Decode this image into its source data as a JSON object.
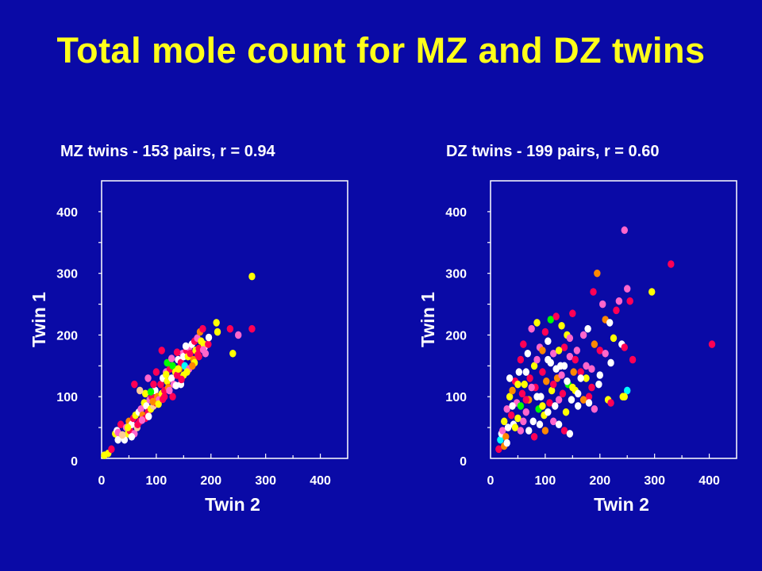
{
  "title": "Total mole count for MZ and DZ twins",
  "colors": {
    "background": "#0a0aa6",
    "title": "#ffff1a",
    "text": "#ffffff",
    "axes": "#ffffff"
  },
  "chart_data": [
    {
      "type": "scatter",
      "title": "MZ twins - 153 pairs, r = 0.94",
      "xlabel": "Twin 2",
      "ylabel": "Twin 1",
      "xlim": [
        0,
        450
      ],
      "ylim": [
        0,
        450
      ],
      "xticks": [
        "0",
        "100",
        "200",
        "300",
        "400"
      ],
      "yticks": [
        "0",
        "100",
        "200",
        "300",
        "400"
      ],
      "grid": false,
      "points": [
        [
          5,
          5,
          "#ffff00"
        ],
        [
          12,
          8,
          "#ffff00"
        ],
        [
          18,
          15,
          "#ff0055"
        ],
        [
          25,
          40,
          "#ffff00"
        ],
        [
          28,
          45,
          "#ffffff"
        ],
        [
          30,
          42,
          "#ff66cc"
        ],
        [
          35,
          55,
          "#ff0055"
        ],
        [
          40,
          35,
          "#ffff00"
        ],
        [
          42,
          30,
          "#ffffff"
        ],
        [
          45,
          50,
          "#ff66cc"
        ],
        [
          48,
          40,
          "#ffff00"
        ],
        [
          50,
          60,
          "#ff8800"
        ],
        [
          52,
          45,
          "#ff0055"
        ],
        [
          55,
          55,
          "#ffffff"
        ],
        [
          58,
          65,
          "#ff0055"
        ],
        [
          60,
          40,
          "#ff66cc"
        ],
        [
          62,
          70,
          "#ffff00"
        ],
        [
          65,
          50,
          "#ffcc99"
        ],
        [
          68,
          75,
          "#ffffff"
        ],
        [
          70,
          60,
          "#ff0055"
        ],
        [
          72,
          80,
          "#ff66cc"
        ],
        [
          75,
          70,
          "#ff8800"
        ],
        [
          78,
          90,
          "#ffff00"
        ],
        [
          80,
          65,
          "#ff0055"
        ],
        [
          82,
          85,
          "#ffffff"
        ],
        [
          85,
          75,
          "#ff0055"
        ],
        [
          88,
          95,
          "#ff66cc"
        ],
        [
          90,
          80,
          "#ffff00"
        ],
        [
          92,
          100,
          "#ff0055"
        ],
        [
          95,
          85,
          "#ffcc99"
        ],
        [
          98,
          110,
          "#ffffff"
        ],
        [
          100,
          90,
          "#ff0055"
        ],
        [
          102,
          100,
          "#ff8800"
        ],
        [
          105,
          95,
          "#ff66cc"
        ],
        [
          108,
          120,
          "#ff0055"
        ],
        [
          110,
          105,
          "#ffff00"
        ],
        [
          112,
          130,
          "#ffffff"
        ],
        [
          115,
          110,
          "#ff0055"
        ],
        [
          118,
          140,
          "#ff66cc"
        ],
        [
          120,
          125,
          "#ffff00"
        ],
        [
          122,
          115,
          "#ff8800"
        ],
        [
          125,
          145,
          "#ff0055"
        ],
        [
          128,
          130,
          "#ffffff"
        ],
        [
          130,
          150,
          "#00ff00"
        ],
        [
          132,
          120,
          "#ff66cc"
        ],
        [
          135,
          140,
          "#ffff00"
        ],
        [
          138,
          135,
          "#ff0055"
        ],
        [
          140,
          160,
          "#ffffff"
        ],
        [
          142,
          145,
          "#ff8800"
        ],
        [
          145,
          155,
          "#ff0055"
        ],
        [
          148,
          170,
          "#ff66cc"
        ],
        [
          150,
          165,
          "#ffffff"
        ],
        [
          152,
          150,
          "#00ffff"
        ],
        [
          155,
          175,
          "#ff0055"
        ],
        [
          158,
          165,
          "#ffff00"
        ],
        [
          160,
          180,
          "#ff66cc"
        ],
        [
          162,
          170,
          "#ff0055"
        ],
        [
          165,
          185,
          "#ffffff"
        ],
        [
          168,
          160,
          "#ff8800"
        ],
        [
          170,
          190,
          "#ff0055"
        ],
        [
          172,
          175,
          "#ffff00"
        ],
        [
          175,
          195,
          "#ff66cc"
        ],
        [
          178,
          165,
          "#ff0055"
        ],
        [
          180,
          205,
          "#ff8800"
        ],
        [
          182,
          190,
          "#ffff00"
        ],
        [
          185,
          210,
          "#ff0055"
        ],
        [
          188,
          180,
          "#ffffff"
        ],
        [
          190,
          170,
          "#ff66cc"
        ],
        [
          110,
          175,
          "#ff0055"
        ],
        [
          115,
          100,
          "#ff0055"
        ],
        [
          95,
          120,
          "#ff0055"
        ],
        [
          60,
          120,
          "#ff0055"
        ],
        [
          80,
          105,
          "#ffff00"
        ],
        [
          100,
          140,
          "#ff0055"
        ],
        [
          130,
          100,
          "#ff0055"
        ],
        [
          140,
          145,
          "#ffff00"
        ],
        [
          150,
          135,
          "#ffff00"
        ],
        [
          85,
          130,
          "#ff66cc"
        ],
        [
          70,
          110,
          "#ffcc99"
        ],
        [
          120,
          155,
          "#00ff00"
        ],
        [
          145,
          120,
          "#ffffff"
        ],
        [
          160,
          145,
          "#ff66cc"
        ],
        [
          170,
          155,
          "#ffff00"
        ],
        [
          178,
          178,
          "#ff0055"
        ],
        [
          187,
          185,
          "#ffff00"
        ],
        [
          195,
          185,
          "#ff0055"
        ],
        [
          210,
          220,
          "#ffff00"
        ],
        [
          212,
          205,
          "#ffff00"
        ],
        [
          235,
          210,
          "#ff0055"
        ],
        [
          250,
          200,
          "#ff66cc"
        ],
        [
          240,
          170,
          "#ffff00"
        ],
        [
          275,
          210,
          "#ff0055"
        ],
        [
          275,
          295,
          "#ffff00"
        ],
        [
          30,
          30,
          "#ffffff"
        ],
        [
          38,
          38,
          "#ffcc99"
        ],
        [
          48,
          50,
          "#ffff00"
        ],
        [
          55,
          35,
          "#ffffff"
        ],
        [
          66,
          55,
          "#ff0055"
        ],
        [
          74,
          62,
          "#ff66cc"
        ],
        [
          86,
          68,
          "#ffffff"
        ],
        [
          94,
          92,
          "#ff8800"
        ],
        [
          104,
          88,
          "#ffff00"
        ],
        [
          112,
          96,
          "#ff0055"
        ],
        [
          124,
          110,
          "#ff66cc"
        ],
        [
          136,
          118,
          "#ffffff"
        ],
        [
          146,
          128,
          "#ff0055"
        ],
        [
          156,
          140,
          "#ffff00"
        ],
        [
          166,
          150,
          "#ff8800"
        ],
        [
          176,
          168,
          "#ff0055"
        ],
        [
          186,
          176,
          "#ff66cc"
        ],
        [
          196,
          196,
          "#ffffff"
        ],
        [
          90,
          108,
          "#00ff00"
        ],
        [
          118,
          136,
          "#ffff00"
        ],
        [
          128,
          162,
          "#ff66cc"
        ],
        [
          138,
          172,
          "#ff0055"
        ],
        [
          154,
          182,
          "#ffffff"
        ]
      ]
    },
    {
      "type": "scatter",
      "title": "DZ twins - 199 pairs, r = 0.60",
      "xlabel": "Twin 2",
      "ylabel": "Twin 1",
      "xlim": [
        0,
        450
      ],
      "ylim": [
        0,
        450
      ],
      "xticks": [
        "0",
        "100",
        "200",
        "300",
        "400"
      ],
      "yticks": [
        "0",
        "100",
        "200",
        "300",
        "400"
      ],
      "grid": false,
      "points": [
        [
          15,
          15,
          "#ff0055"
        ],
        [
          18,
          30,
          "#00ffff"
        ],
        [
          20,
          40,
          "#ffffff"
        ],
        [
          22,
          45,
          "#ff66cc"
        ],
        [
          25,
          60,
          "#ffff00"
        ],
        [
          28,
          35,
          "#ff8800"
        ],
        [
          30,
          80,
          "#ff66cc"
        ],
        [
          32,
          50,
          "#ffffff"
        ],
        [
          35,
          100,
          "#ffff00"
        ],
        [
          38,
          70,
          "#ff0055"
        ],
        [
          40,
          110,
          "#ff8800"
        ],
        [
          42,
          55,
          "#ffffff"
        ],
        [
          45,
          125,
          "#ff0055"
        ],
        [
          48,
          90,
          "#ff66cc"
        ],
        [
          50,
          65,
          "#ffff00"
        ],
        [
          52,
          140,
          "#ffffff"
        ],
        [
          55,
          85,
          "#00ff00"
        ],
        [
          58,
          105,
          "#ff0055"
        ],
        [
          60,
          185,
          "#ff0055"
        ],
        [
          62,
          120,
          "#ffff00"
        ],
        [
          65,
          75,
          "#ff66cc"
        ],
        [
          68,
          170,
          "#ffffff"
        ],
        [
          70,
          95,
          "#ff8800"
        ],
        [
          72,
          130,
          "#ff0055"
        ],
        [
          75,
          210,
          "#ff66cc"
        ],
        [
          78,
          60,
          "#ffffff"
        ],
        [
          80,
          150,
          "#ffff00"
        ],
        [
          82,
          115,
          "#ff0055"
        ],
        [
          85,
          220,
          "#ffff00"
        ],
        [
          88,
          80,
          "#00ff00"
        ],
        [
          90,
          180,
          "#ff66cc"
        ],
        [
          92,
          100,
          "#ffffff"
        ],
        [
          95,
          140,
          "#ff0055"
        ],
        [
          98,
          70,
          "#ffff00"
        ],
        [
          100,
          205,
          "#ff0055"
        ],
        [
          102,
          125,
          "#ff8800"
        ],
        [
          105,
          160,
          "#ffffff"
        ],
        [
          108,
          90,
          "#ff0055"
        ],
        [
          110,
          225,
          "#00ff00"
        ],
        [
          112,
          110,
          "#ffff00"
        ],
        [
          115,
          170,
          "#ff66cc"
        ],
        [
          118,
          85,
          "#ffffff"
        ],
        [
          120,
          230,
          "#ff0055"
        ],
        [
          122,
          130,
          "#ff8800"
        ],
        [
          125,
          95,
          "#ff66cc"
        ],
        [
          128,
          150,
          "#ffffff"
        ],
        [
          130,
          215,
          "#ffff00"
        ],
        [
          132,
          105,
          "#ff0055"
        ],
        [
          135,
          180,
          "#ff0055"
        ],
        [
          138,
          75,
          "#ffff00"
        ],
        [
          140,
          200,
          "#ffff00"
        ],
        [
          142,
          120,
          "#00ff00"
        ],
        [
          145,
          165,
          "#ff66cc"
        ],
        [
          148,
          95,
          "#ffffff"
        ],
        [
          150,
          235,
          "#ff0055"
        ],
        [
          152,
          140,
          "#ff8800"
        ],
        [
          155,
          110,
          "#ffff00"
        ],
        [
          158,
          175,
          "#ff66cc"
        ],
        [
          160,
          85,
          "#ffffff"
        ],
        [
          165,
          140,
          "#ff0055"
        ],
        [
          170,
          200,
          "#ff66cc"
        ],
        [
          175,
          130,
          "#ffff00"
        ],
        [
          178,
          210,
          "#ffffff"
        ],
        [
          180,
          100,
          "#ff0055"
        ],
        [
          185,
          145,
          "#ff66cc"
        ],
        [
          188,
          270,
          "#ff0055"
        ],
        [
          190,
          185,
          "#ff8800"
        ],
        [
          195,
          300,
          "#ff8800"
        ],
        [
          198,
          120,
          "#ffffff"
        ],
        [
          200,
          175,
          "#ff0055"
        ],
        [
          205,
          250,
          "#ff66cc"
        ],
        [
          210,
          225,
          "#ff8800"
        ],
        [
          215,
          95,
          "#ffff00"
        ],
        [
          218,
          220,
          "#ffffff"
        ],
        [
          220,
          90,
          "#ff0055"
        ],
        [
          225,
          195,
          "#ffff00"
        ],
        [
          230,
          240,
          "#ff0055"
        ],
        [
          235,
          255,
          "#ff66cc"
        ],
        [
          240,
          185,
          "#ffffff"
        ],
        [
          242,
          100,
          "#ffff00"
        ],
        [
          245,
          180,
          "#ff0055"
        ],
        [
          250,
          275,
          "#ff66cc"
        ],
        [
          255,
          255,
          "#ff0055"
        ],
        [
          260,
          160,
          "#ff0055"
        ],
        [
          245,
          370,
          "#ff66cc"
        ],
        [
          295,
          270,
          "#ffff00"
        ],
        [
          330,
          315,
          "#ff0055"
        ],
        [
          405,
          185,
          "#ff0055"
        ],
        [
          250,
          110,
          "#00ffff"
        ],
        [
          245,
          100,
          "#ffff00"
        ],
        [
          35,
          130,
          "#ffffff"
        ],
        [
          55,
          160,
          "#ff0055"
        ],
        [
          65,
          140,
          "#ffffff"
        ],
        [
          75,
          115,
          "#ff66cc"
        ],
        [
          85,
          100,
          "#ffffff"
        ],
        [
          95,
          85,
          "#ffff00"
        ],
        [
          105,
          75,
          "#ffffff"
        ],
        [
          115,
          60,
          "#ff66cc"
        ],
        [
          125,
          55,
          "#ffffff"
        ],
        [
          135,
          45,
          "#ff0055"
        ],
        [
          145,
          40,
          "#ffffff"
        ],
        [
          100,
          45,
          "#ff8800"
        ],
        [
          90,
          55,
          "#ffffff"
        ],
        [
          80,
          35,
          "#ff0055"
        ],
        [
          70,
          45,
          "#ffffff"
        ],
        [
          60,
          60,
          "#ff66cc"
        ],
        [
          50,
          120,
          "#ffff00"
        ],
        [
          40,
          85,
          "#ffffff"
        ],
        [
          110,
          155,
          "#ffffff"
        ],
        [
          120,
          145,
          "#ffffff"
        ],
        [
          130,
          135,
          "#ff66cc"
        ],
        [
          140,
          125,
          "#ffffff"
        ],
        [
          150,
          115,
          "#ffff00"
        ],
        [
          160,
          105,
          "#ffffff"
        ],
        [
          170,
          95,
          "#ff8800"
        ],
        [
          180,
          90,
          "#ffffff"
        ],
        [
          190,
          80,
          "#ff66cc"
        ],
        [
          200,
          135,
          "#ffffff"
        ],
        [
          210,
          170,
          "#ff66cc"
        ],
        [
          220,
          155,
          "#ffffff"
        ],
        [
          25,
          20,
          "#ff8800"
        ],
        [
          30,
          25,
          "#ffffff"
        ],
        [
          45,
          50,
          "#ffff00"
        ],
        [
          55,
          45,
          "#ff66cc"
        ],
        [
          65,
          95,
          "#ff0055"
        ],
        [
          85,
          160,
          "#ff66cc"
        ],
        [
          95,
          175,
          "#ff8800"
        ],
        [
          105,
          190,
          "#ffffff"
        ],
        [
          115,
          120,
          "#ff0055"
        ],
        [
          125,
          175,
          "#ffff00"
        ],
        [
          135,
          150,
          "#ffffff"
        ],
        [
          145,
          195,
          "#ff66cc"
        ],
        [
          155,
          160,
          "#ff0055"
        ],
        [
          165,
          130,
          "#ffffff"
        ],
        [
          175,
          150,
          "#ff66cc"
        ],
        [
          185,
          115,
          "#ff0055"
        ]
      ]
    }
  ]
}
